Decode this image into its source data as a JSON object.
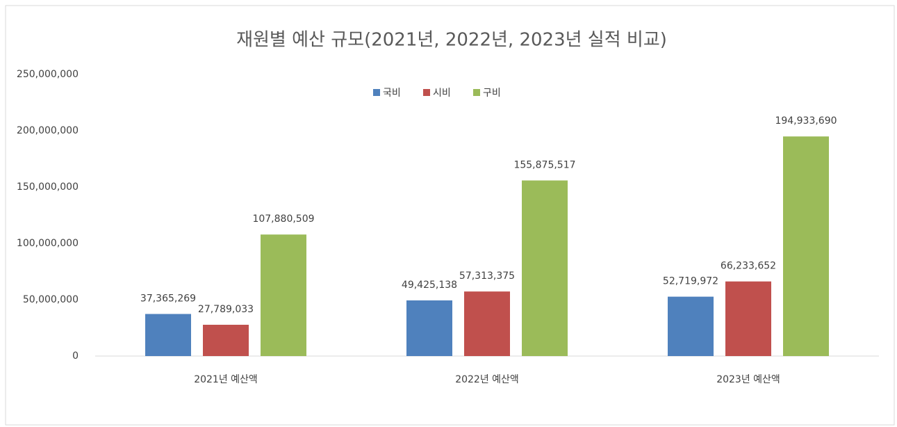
{
  "chart_data": {
    "type": "bar",
    "title": "재원별 예산 규모(2021년, 2022년, 2023년 실적 비교)",
    "categories": [
      "2021년 예산액",
      "2022년 예산액",
      "2023년 예산액"
    ],
    "series": [
      {
        "name": "국비",
        "color": "#4f81bd",
        "values": [
          37365269,
          49425138,
          52719972
        ],
        "value_labels": [
          "37,365,269",
          "49,425,138",
          "52,719,972"
        ]
      },
      {
        "name": "시비",
        "color": "#c0504d",
        "values": [
          27789033,
          57313375,
          66233652
        ],
        "value_labels": [
          "27,789,033",
          "57,313,375",
          "66,233,652"
        ]
      },
      {
        "name": "구비",
        "color": "#9bbb59",
        "values": [
          107880509,
          155875517,
          194933690
        ],
        "value_labels": [
          "107,880,509",
          "155,875,517",
          "194,933,690"
        ]
      }
    ],
    "ylim": [
      0,
      250000000
    ],
    "yticks": [
      0,
      {
        "value": 50000000,
        "label": "50,000,000"
      },
      {
        "value": 100000000,
        "label": "100,000,000"
      },
      {
        "value": 150000000,
        "label": "150,000,000"
      },
      {
        "value": 200000000,
        "label": "200,000,000"
      },
      {
        "value": 250000000,
        "label": "250,000,000"
      }
    ],
    "grid": false,
    "legend": "top"
  }
}
